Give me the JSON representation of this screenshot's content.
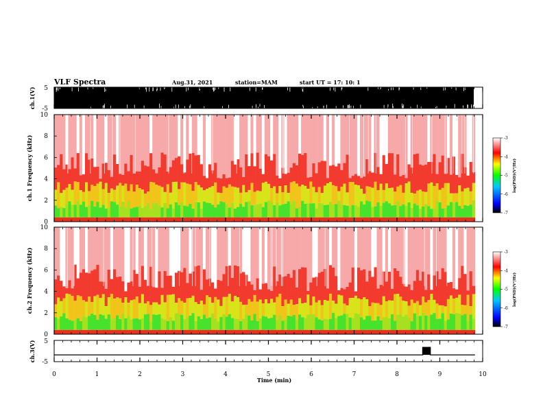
{
  "header": {
    "title": "VLF Spectra",
    "date": "Aug.31, 2021",
    "station": "station=MAM",
    "start_ut": "start UT =   17: 10: 1"
  },
  "chart_data": [
    {
      "type": "line",
      "panel": "ch1-waveform",
      "ylabel": "ch.1(V)",
      "yticks": [
        "5",
        "-5"
      ],
      "ylim": [
        -5,
        5
      ],
      "xlim": [
        0,
        10
      ],
      "xunit": "min",
      "description_values": {
        "data_end_x": 9.82
      }
    },
    {
      "type": "heatmap",
      "panel": "ch1-spectrogram",
      "ylabel": "ch.1 Frequency (kHz)",
      "yticks": [
        "0",
        "2",
        "4",
        "6",
        "8",
        "10"
      ],
      "ylim": [
        0,
        10
      ],
      "xlim": [
        0,
        10
      ],
      "colorbar": {
        "label": "log(PSD)(V²/Hz)",
        "ticks": [
          "-3",
          "-4",
          "-5",
          "-6",
          "-7"
        ],
        "range": [
          -7,
          -3
        ]
      }
    },
    {
      "type": "heatmap",
      "panel": "ch2-spectrogram",
      "ylabel": "ch.2 Frequency (kHz)",
      "yticks": [
        "0",
        "2",
        "4",
        "6",
        "8",
        "10"
      ],
      "ylim": [
        0,
        10
      ],
      "xlim": [
        0,
        10
      ],
      "colorbar": {
        "label": "log(PSD)(V²/Hz)",
        "ticks": [
          "-3",
          "-4",
          "-5",
          "-6",
          "-7"
        ],
        "range": [
          -7,
          -3
        ]
      }
    },
    {
      "type": "line",
      "panel": "ch3-waveform",
      "ylabel": "ch.3(V)",
      "yticks": [
        "5",
        "-5"
      ],
      "ylim": [
        -5,
        5
      ],
      "xlim": [
        0,
        10
      ],
      "series": [
        {
          "x": [
            0,
            8.6,
            8.6,
            8.78,
            8.78,
            9.82
          ],
          "y": [
            -1.8,
            -1.8,
            1.7,
            1.7,
            -1.8,
            -1.8
          ]
        }
      ],
      "xlabel": "Time (min)",
      "xticks": [
        "0",
        "1",
        "2",
        "3",
        "4",
        "5",
        "6",
        "7",
        "8",
        "9",
        "10"
      ]
    }
  ],
  "colors": {
    "axis": "#000000",
    "psd_high": "#ff0000",
    "psd_mid": "#ffff00",
    "psd_low_mid": "#00ff00",
    "psd_low": "#0000ff"
  }
}
